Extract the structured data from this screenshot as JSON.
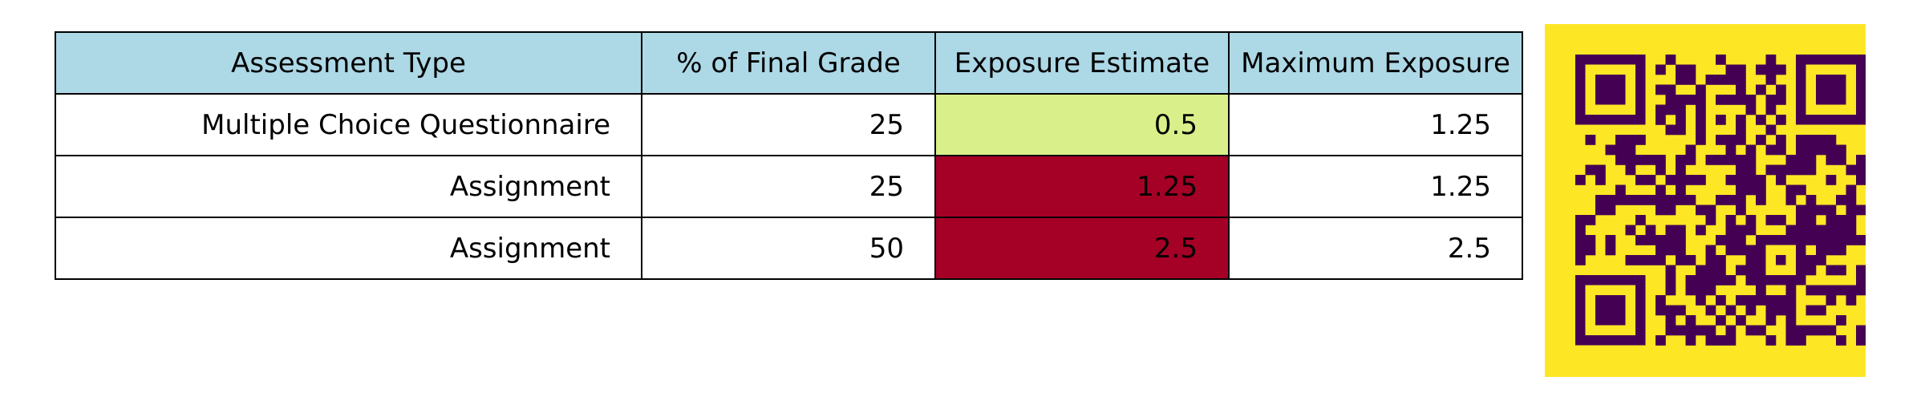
{
  "chart_data": {
    "type": "table",
    "columns": [
      "Assessment Type",
      "% of Final Grade",
      "Exposure Estimate",
      "Maximum Exposure"
    ],
    "rows": [
      [
        "Multiple Choice Questionnaire",
        "25",
        "0.5",
        "1.25"
      ],
      [
        "Assignment",
        "25",
        "1.25",
        "1.25"
      ],
      [
        "Assignment",
        "50",
        "2.5",
        "2.5"
      ]
    ],
    "header_color": "#add8e6",
    "exposure_cell_colors": [
      "#d9f08a",
      "#a50026",
      "#a50026"
    ]
  },
  "qr_code": {
    "background_color": "#fde725",
    "module_color": "#440154"
  }
}
